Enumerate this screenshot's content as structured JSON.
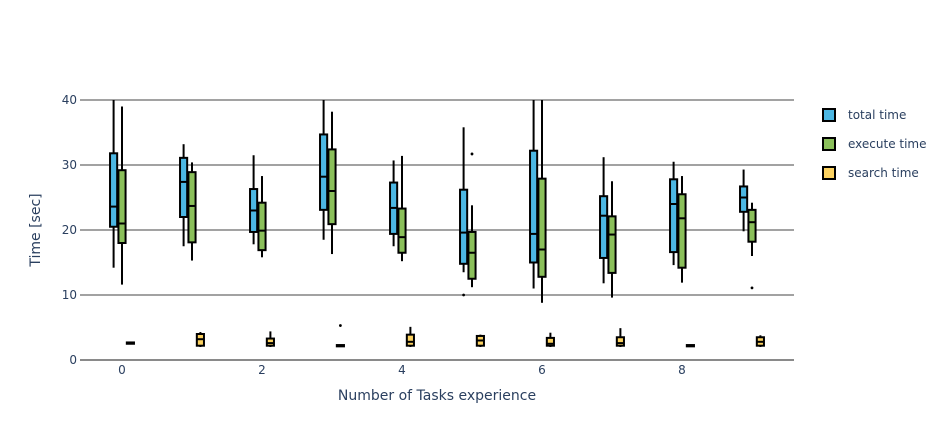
{
  "chart_data": {
    "type": "box",
    "xlabel": "Number of Tasks experience",
    "ylabel": "Time [sec]",
    "ylim": [
      0,
      40
    ],
    "xlim": [
      -0.6,
      9.6
    ],
    "x_ticks": [
      0,
      2,
      4,
      6,
      8
    ],
    "y_ticks": [
      0,
      10,
      20,
      30,
      40
    ],
    "grid": true,
    "legend_position": "right",
    "colors": {
      "total time": "#4cb7e3",
      "execute time": "#8bc05b",
      "search time": "#fcd261",
      "line": "#000000",
      "grid": "#444444",
      "text": "#2a3f5f"
    },
    "series": [
      {
        "name": "total time",
        "boxes": [
          {
            "x": 0,
            "min": 14.2,
            "q1": 20.5,
            "median": 23.6,
            "q3": 31.8,
            "max": 40,
            "outliers": []
          },
          {
            "x": 1,
            "min": 17.5,
            "q1": 22.0,
            "median": 27.4,
            "q3": 31.1,
            "max": 33.2,
            "outliers": []
          },
          {
            "x": 2,
            "min": 17.8,
            "q1": 19.7,
            "median": 23.0,
            "q3": 26.3,
            "max": 31.5,
            "outliers": []
          },
          {
            "x": 3,
            "min": 18.5,
            "q1": 23.1,
            "median": 28.2,
            "q3": 34.7,
            "max": 40,
            "outliers": []
          },
          {
            "x": 4,
            "min": 17.5,
            "q1": 19.4,
            "median": 23.4,
            "q3": 27.3,
            "max": 30.7,
            "outliers": []
          },
          {
            "x": 5,
            "min": 13.5,
            "q1": 14.8,
            "median": 19.6,
            "q3": 26.2,
            "max": 35.8,
            "outliers": [
              10.0
            ]
          },
          {
            "x": 6,
            "min": 11.0,
            "q1": 15.0,
            "median": 19.4,
            "q3": 32.2,
            "max": 40,
            "outliers": []
          },
          {
            "x": 7,
            "min": 11.8,
            "q1": 15.7,
            "median": 22.2,
            "q3": 25.2,
            "max": 31.2,
            "outliers": []
          },
          {
            "x": 8,
            "min": 14.6,
            "q1": 16.6,
            "median": 24.0,
            "q3": 27.8,
            "max": 30.5,
            "outliers": []
          },
          {
            "x": 9,
            "min": 19.8,
            "q1": 22.8,
            "median": 25.0,
            "q3": 26.7,
            "max": 29.3,
            "outliers": []
          }
        ]
      },
      {
        "name": "execute time",
        "boxes": [
          {
            "x": 0,
            "min": 11.6,
            "q1": 18.0,
            "median": 21.0,
            "q3": 29.2,
            "max": 39.0,
            "outliers": []
          },
          {
            "x": 1,
            "min": 15.3,
            "q1": 18.1,
            "median": 23.7,
            "q3": 28.9,
            "max": 30.4,
            "outliers": []
          },
          {
            "x": 2,
            "min": 15.8,
            "q1": 16.9,
            "median": 19.9,
            "q3": 24.2,
            "max": 28.3,
            "outliers": []
          },
          {
            "x": 3,
            "min": 16.3,
            "q1": 20.9,
            "median": 26.0,
            "q3": 32.4,
            "max": 38.2,
            "outliers": []
          },
          {
            "x": 4,
            "min": 15.2,
            "q1": 16.5,
            "median": 18.9,
            "q3": 23.3,
            "max": 31.4,
            "outliers": []
          },
          {
            "x": 5,
            "min": 11.2,
            "q1": 12.5,
            "median": 16.5,
            "q3": 19.7,
            "max": 23.8,
            "outliers": [
              31.7
            ]
          },
          {
            "x": 6,
            "min": 8.8,
            "q1": 12.8,
            "median": 17.0,
            "q3": 27.9,
            "max": 40,
            "outliers": []
          },
          {
            "x": 7,
            "min": 9.6,
            "q1": 13.4,
            "median": 19.3,
            "q3": 22.1,
            "max": 27.5,
            "outliers": []
          },
          {
            "x": 8,
            "min": 11.9,
            "q1": 14.2,
            "median": 21.8,
            "q3": 25.5,
            "max": 28.3,
            "outliers": []
          },
          {
            "x": 9,
            "min": 16.0,
            "q1": 18.2,
            "median": 21.2,
            "q3": 23.1,
            "max": 24.2,
            "outliers": [
              11.1
            ]
          }
        ]
      },
      {
        "name": "search time",
        "boxes": [
          {
            "x": 0,
            "min": 2.4,
            "q1": 2.5,
            "median": 2.6,
            "q3": 2.7,
            "max": 2.8,
            "outliers": []
          },
          {
            "x": 1,
            "min": 2.0,
            "q1": 2.2,
            "median": 3.2,
            "q3": 4.0,
            "max": 4.3,
            "outliers": []
          },
          {
            "x": 2,
            "min": 2.0,
            "q1": 2.2,
            "median": 2.6,
            "q3": 3.3,
            "max": 4.4,
            "outliers": []
          },
          {
            "x": 3,
            "min": 2.0,
            "q1": 2.1,
            "median": 2.2,
            "q3": 2.3,
            "max": 2.4,
            "outliers": [
              5.3
            ]
          },
          {
            "x": 4,
            "min": 2.0,
            "q1": 2.2,
            "median": 2.8,
            "q3": 3.9,
            "max": 5.1,
            "outliers": []
          },
          {
            "x": 5,
            "min": 2.0,
            "q1": 2.2,
            "median": 3.0,
            "q3": 3.7,
            "max": 3.9,
            "outliers": []
          },
          {
            "x": 6,
            "min": 2.0,
            "q1": 2.2,
            "median": 2.5,
            "q3": 3.4,
            "max": 4.2,
            "outliers": []
          },
          {
            "x": 7,
            "min": 2.0,
            "q1": 2.2,
            "median": 2.6,
            "q3": 3.5,
            "max": 4.9,
            "outliers": []
          },
          {
            "x": 8,
            "min": 2.0,
            "q1": 2.1,
            "median": 2.2,
            "q3": 2.3,
            "max": 2.4,
            "outliers": []
          },
          {
            "x": 9,
            "min": 2.0,
            "q1": 2.2,
            "median": 2.8,
            "q3": 3.5,
            "max": 3.8,
            "outliers": []
          }
        ]
      }
    ]
  }
}
